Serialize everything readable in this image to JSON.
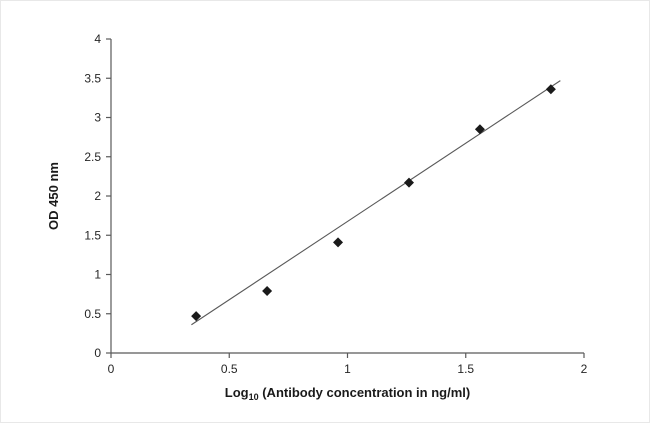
{
  "chart_data": {
    "type": "scatter",
    "title": "",
    "xlabel": {
      "prefix": "Log",
      "sub": "10",
      "rest": " (Antibody concentration in ng/ml)"
    },
    "ylabel": "OD 450 nm",
    "xlim": [
      0,
      2
    ],
    "ylim": [
      0,
      4
    ],
    "xticks": [
      0,
      0.5,
      1,
      1.5,
      2
    ],
    "yticks": [
      0,
      0.5,
      1,
      1.5,
      2,
      2.5,
      3,
      3.5,
      4
    ],
    "grid": false,
    "legend": "none",
    "marker": "diamond",
    "marker_color": "#1a1a1a",
    "axis_color": "#595959",
    "points": [
      {
        "x": 0.36,
        "y": 0.47
      },
      {
        "x": 0.66,
        "y": 0.79
      },
      {
        "x": 0.96,
        "y": 1.41
      },
      {
        "x": 1.26,
        "y": 2.17
      },
      {
        "x": 1.56,
        "y": 2.85
      },
      {
        "x": 1.86,
        "y": 3.36
      }
    ],
    "trendline": {
      "x1": 0.34,
      "y1": 0.36,
      "x2": 1.9,
      "y2": 3.47,
      "color": "#595959"
    }
  }
}
